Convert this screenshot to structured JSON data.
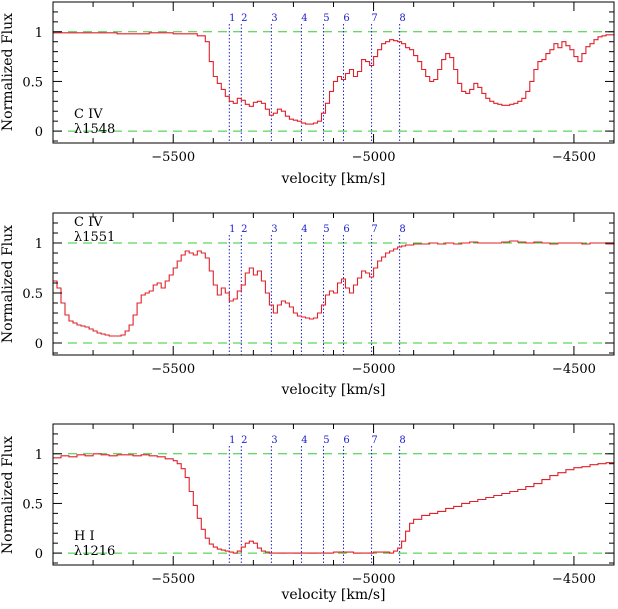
{
  "chart_data": [
    {
      "type": "line",
      "ion": "C IV",
      "wavelength": "λ1548",
      "xlabel": "velocity [km/s]",
      "ylabel": "Normalized Flux",
      "xlim": [
        -5800,
        -4400
      ],
      "ylim": [
        -0.12,
        1.3
      ],
      "xticks": [
        -5500,
        -5000,
        -4500
      ],
      "yticks": [
        0,
        0.5,
        1
      ],
      "xtick_labels": [
        "−5500",
        "−5000",
        "−4500"
      ],
      "ytick_labels": [
        "0",
        "0.5",
        "1"
      ],
      "reference_lines": [
        0,
        1
      ],
      "components": [
        {
          "label": "1",
          "v": -5360
        },
        {
          "label": "2",
          "v": -5330
        },
        {
          "label": "3",
          "v": -5255
        },
        {
          "label": "4",
          "v": -5180
        },
        {
          "label": "5",
          "v": -5125
        },
        {
          "label": "6",
          "v": -5075
        },
        {
          "label": "7",
          "v": -5005
        },
        {
          "label": "8",
          "v": -4935
        }
      ],
      "series": [
        {
          "x": [
            -5800,
            -5720,
            -5640,
            -5560,
            -5500,
            -5440,
            -5420,
            -5410,
            -5400,
            -5390,
            -5380,
            -5370,
            -5360,
            -5350,
            -5340,
            -5330,
            -5320,
            -5310,
            -5300,
            -5290,
            -5280,
            -5270,
            -5260,
            -5250,
            -5240,
            -5230,
            -5220,
            -5210,
            -5200,
            -5190,
            -5180,
            -5170,
            -5160,
            -5150,
            -5140,
            -5130,
            -5120,
            -5110,
            -5100,
            -5090,
            -5080,
            -5070,
            -5060,
            -5050,
            -5040,
            -5030,
            -5020,
            -5010,
            -5000,
            -4990,
            -4980,
            -4970,
            -4960,
            -4950,
            -4940,
            -4930,
            -4920,
            -4910,
            -4900,
            -4890,
            -4880,
            -4870,
            -4860,
            -4850,
            -4840,
            -4830,
            -4820,
            -4810,
            -4800,
            -4790,
            -4780,
            -4770,
            -4760,
            -4750,
            -4740,
            -4730,
            -4720,
            -4710,
            -4700,
            -4690,
            -4680,
            -4670,
            -4660,
            -4650,
            -4640,
            -4630,
            -4620,
            -4610,
            -4600,
            -4590,
            -4580,
            -4570,
            -4560,
            -4550,
            -4540,
            -4530,
            -4520,
            -4510,
            -4500,
            -4490,
            -4480,
            -4470,
            -4460,
            -4450,
            -4440,
            -4430,
            -4420,
            -4410,
            -4400
          ],
          "y": [
            0.99,
            0.99,
            0.98,
            0.99,
            0.98,
            0.96,
            0.9,
            0.7,
            0.55,
            0.48,
            0.42,
            0.35,
            0.3,
            0.28,
            0.33,
            0.31,
            0.27,
            0.25,
            0.29,
            0.3,
            0.28,
            0.22,
            0.16,
            0.18,
            0.22,
            0.2,
            0.15,
            0.12,
            0.11,
            0.1,
            0.08,
            0.07,
            0.07,
            0.08,
            0.1,
            0.18,
            0.28,
            0.4,
            0.5,
            0.55,
            0.52,
            0.58,
            0.62,
            0.55,
            0.6,
            0.72,
            0.7,
            0.66,
            0.75,
            0.82,
            0.88,
            0.9,
            0.92,
            0.91,
            0.9,
            0.88,
            0.84,
            0.82,
            0.76,
            0.7,
            0.62,
            0.55,
            0.5,
            0.52,
            0.62,
            0.72,
            0.78,
            0.74,
            0.62,
            0.48,
            0.4,
            0.38,
            0.42,
            0.48,
            0.44,
            0.38,
            0.33,
            0.3,
            0.28,
            0.27,
            0.26,
            0.26,
            0.27,
            0.28,
            0.3,
            0.33,
            0.4,
            0.5,
            0.62,
            0.7,
            0.72,
            0.78,
            0.82,
            0.88,
            0.84,
            0.9,
            0.86,
            0.82,
            0.75,
            0.7,
            0.78,
            0.85,
            0.88,
            0.92,
            0.95,
            0.96,
            0.97,
            0.97,
            0.98
          ]
        }
      ]
    },
    {
      "type": "line",
      "ion": "C IV",
      "wavelength": "λ1551",
      "xlabel": "velocity [km/s]",
      "ylabel": "Normalized Flux",
      "xlim": [
        -5800,
        -4400
      ],
      "ylim": [
        -0.12,
        1.3
      ],
      "xticks": [
        -5500,
        -5000,
        -4500
      ],
      "yticks": [
        0,
        0.5,
        1
      ],
      "xtick_labels": [
        "−5500",
        "−5000",
        "−4500"
      ],
      "ytick_labels": [
        "0",
        "0.5",
        "1"
      ],
      "reference_lines": [
        0,
        1
      ],
      "components": [
        {
          "label": "1",
          "v": -5360
        },
        {
          "label": "2",
          "v": -5330
        },
        {
          "label": "3",
          "v": -5255
        },
        {
          "label": "4",
          "v": -5180
        },
        {
          "label": "5",
          "v": -5125
        },
        {
          "label": "6",
          "v": -5075
        },
        {
          "label": "7",
          "v": -5005
        },
        {
          "label": "8",
          "v": -4935
        }
      ],
      "series": [
        {
          "x": [
            -5800,
            -5790,
            -5780,
            -5770,
            -5760,
            -5750,
            -5740,
            -5730,
            -5720,
            -5710,
            -5700,
            -5690,
            -5680,
            -5670,
            -5660,
            -5650,
            -5640,
            -5630,
            -5620,
            -5610,
            -5600,
            -5590,
            -5580,
            -5570,
            -5560,
            -5550,
            -5540,
            -5530,
            -5520,
            -5510,
            -5500,
            -5490,
            -5480,
            -5470,
            -5460,
            -5450,
            -5440,
            -5430,
            -5420,
            -5410,
            -5400,
            -5390,
            -5380,
            -5370,
            -5360,
            -5350,
            -5340,
            -5330,
            -5320,
            -5310,
            -5300,
            -5290,
            -5280,
            -5270,
            -5260,
            -5250,
            -5240,
            -5230,
            -5220,
            -5210,
            -5200,
            -5190,
            -5180,
            -5170,
            -5160,
            -5150,
            -5140,
            -5130,
            -5120,
            -5110,
            -5100,
            -5090,
            -5080,
            -5070,
            -5060,
            -5050,
            -5040,
            -5030,
            -5020,
            -5010,
            -5000,
            -4990,
            -4980,
            -4970,
            -4960,
            -4950,
            -4940,
            -4930,
            -4920,
            -4910,
            -4900,
            -4880,
            -4860,
            -4840,
            -4820,
            -4800,
            -4780,
            -4760,
            -4740,
            -4720,
            -4700,
            -4680,
            -4660,
            -4640,
            -4620,
            -4600,
            -4580,
            -4560,
            -4540,
            -4520,
            -4500,
            -4480,
            -4460,
            -4440,
            -4420,
            -4400
          ],
          "y": [
            0.62,
            0.55,
            0.4,
            0.28,
            0.22,
            0.2,
            0.18,
            0.17,
            0.16,
            0.14,
            0.12,
            0.1,
            0.09,
            0.08,
            0.07,
            0.07,
            0.07,
            0.08,
            0.12,
            0.18,
            0.28,
            0.4,
            0.48,
            0.5,
            0.52,
            0.58,
            0.6,
            0.55,
            0.62,
            0.68,
            0.75,
            0.82,
            0.88,
            0.92,
            0.9,
            0.88,
            0.92,
            0.9,
            0.85,
            0.72,
            0.58,
            0.48,
            0.55,
            0.5,
            0.42,
            0.44,
            0.52,
            0.58,
            0.7,
            0.75,
            0.68,
            0.72,
            0.62,
            0.5,
            0.38,
            0.3,
            0.38,
            0.42,
            0.4,
            0.36,
            0.3,
            0.27,
            0.26,
            0.25,
            0.24,
            0.25,
            0.3,
            0.38,
            0.48,
            0.52,
            0.5,
            0.6,
            0.64,
            0.55,
            0.5,
            0.58,
            0.65,
            0.72,
            0.7,
            0.66,
            0.75,
            0.82,
            0.86,
            0.9,
            0.92,
            0.94,
            0.96,
            0.97,
            0.98,
            0.98,
            0.99,
            0.99,
            1.0,
            0.99,
            1.0,
            0.99,
            1.0,
            1.01,
            1.0,
            1.0,
            1.0,
            1.01,
            1.02,
            1.01,
            1.0,
            1.01,
            1.0,
            0.99,
            1.0,
            1.0,
            1.0,
            0.99,
            1.0,
            1.0,
            0.99,
            1.0
          ]
        }
      ]
    },
    {
      "type": "line",
      "ion": "H I",
      "wavelength": "λ1216",
      "xlabel": "velocity [km/s]",
      "ylabel": "Normalized Flux",
      "xlim": [
        -5800,
        -4400
      ],
      "ylim": [
        -0.12,
        1.3
      ],
      "xticks": [
        -5500,
        -5000,
        -4500
      ],
      "yticks": [
        0,
        0.5,
        1
      ],
      "xtick_labels": [
        "−5500",
        "−5000",
        "−4500"
      ],
      "ytick_labels": [
        "0",
        "0.5",
        "1"
      ],
      "reference_lines": [
        0,
        1
      ],
      "components": [
        {
          "label": "1",
          "v": -5360
        },
        {
          "label": "2",
          "v": -5330
        },
        {
          "label": "3",
          "v": -5255
        },
        {
          "label": "4",
          "v": -5180
        },
        {
          "label": "5",
          "v": -5125
        },
        {
          "label": "6",
          "v": -5075
        },
        {
          "label": "7",
          "v": -5005
        },
        {
          "label": "8",
          "v": -4935
        }
      ],
      "series": [
        {
          "x": [
            -5800,
            -5780,
            -5760,
            -5740,
            -5720,
            -5700,
            -5680,
            -5660,
            -5640,
            -5620,
            -5600,
            -5580,
            -5560,
            -5540,
            -5520,
            -5500,
            -5490,
            -5480,
            -5470,
            -5460,
            -5450,
            -5440,
            -5430,
            -5420,
            -5410,
            -5400,
            -5390,
            -5380,
            -5370,
            -5360,
            -5350,
            -5340,
            -5330,
            -5320,
            -5310,
            -5300,
            -5290,
            -5280,
            -5270,
            -5260,
            -5250,
            -5200,
            -5150,
            -5100,
            -5050,
            -5000,
            -4960,
            -4950,
            -4940,
            -4930,
            -4920,
            -4910,
            -4900,
            -4880,
            -4860,
            -4840,
            -4820,
            -4800,
            -4780,
            -4760,
            -4740,
            -4720,
            -4700,
            -4680,
            -4660,
            -4640,
            -4620,
            -4600,
            -4580,
            -4560,
            -4540,
            -4520,
            -4500,
            -4480,
            -4460,
            -4440,
            -4420,
            -4400
          ],
          "y": [
            0.96,
            0.98,
            0.97,
            0.99,
            0.98,
            1.0,
            0.99,
            0.98,
            0.99,
            0.99,
            0.98,
            0.99,
            0.98,
            0.97,
            0.95,
            0.93,
            0.9,
            0.85,
            0.76,
            0.62,
            0.48,
            0.35,
            0.24,
            0.15,
            0.09,
            0.06,
            0.04,
            0.03,
            0.02,
            0.01,
            0.0,
            0.02,
            0.06,
            0.1,
            0.12,
            0.1,
            0.05,
            0.02,
            0.01,
            0.0,
            0.0,
            0.0,
            0.0,
            0.01,
            0.0,
            0.01,
            0.0,
            0.02,
            0.05,
            0.12,
            0.22,
            0.3,
            0.34,
            0.38,
            0.4,
            0.42,
            0.45,
            0.47,
            0.5,
            0.52,
            0.54,
            0.56,
            0.58,
            0.6,
            0.62,
            0.64,
            0.67,
            0.7,
            0.74,
            0.78,
            0.81,
            0.84,
            0.86,
            0.87,
            0.89,
            0.9,
            0.91,
            0.92
          ]
        }
      ]
    }
  ],
  "colors": {
    "spectrum": "#e0202a",
    "reference_lines": "#33cc33",
    "component_lines": "#2222cc",
    "axes": "#000000"
  }
}
